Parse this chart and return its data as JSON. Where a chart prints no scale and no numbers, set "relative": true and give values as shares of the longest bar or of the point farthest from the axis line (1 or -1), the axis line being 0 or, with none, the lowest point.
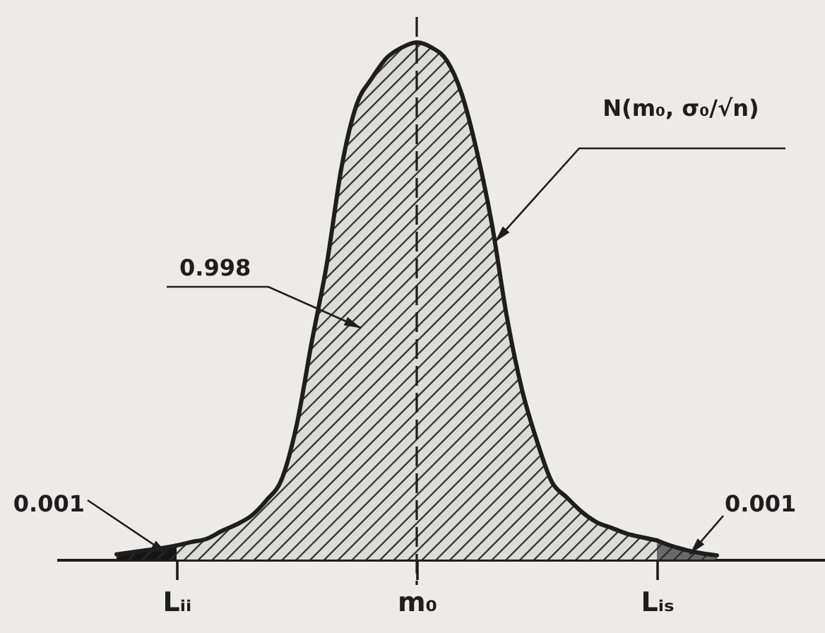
{
  "chart_data": {
    "type": "area",
    "relative": true,
    "categories": [
      null,
      null,
      null,
      null,
      "Lᵢᵢ",
      null,
      null,
      null,
      null,
      null,
      null,
      null,
      null,
      null,
      null,
      null,
      null,
      null,
      null,
      null,
      "m₀",
      null,
      null,
      null,
      null,
      null,
      null,
      null,
      null,
      null,
      null,
      null,
      null,
      null,
      null,
      null,
      "Lᵢₛ",
      null,
      null,
      null,
      null
    ],
    "series": [
      {
        "color": "#151515",
        "values": [
          0.01,
          0.014,
          0.018,
          0.022,
          0.027,
          null,
          null,
          null,
          null,
          null,
          null,
          null,
          null,
          null,
          null,
          null,
          null,
          null,
          null,
          null,
          null,
          null,
          null,
          null,
          null,
          null,
          null,
          null,
          null,
          null,
          null,
          null,
          null,
          null,
          null,
          null,
          null,
          null,
          null,
          null,
          null
        ]
      },
      {
        "color": "#dcdcd8",
        "values": [
          null,
          null,
          null,
          null,
          0.027,
          0.034,
          0.04,
          0.055,
          0.068,
          0.085,
          0.115,
          0.155,
          0.26,
          0.42,
          0.57,
          0.76,
          0.88,
          0.93,
          0.97,
          0.99,
          1.0,
          0.99,
          0.965,
          0.9,
          0.79,
          0.65,
          0.47,
          0.33,
          0.23,
          0.15,
          0.12,
          0.092,
          0.072,
          0.061,
          0.05,
          0.043,
          0.037,
          null,
          null,
          null,
          null
        ]
      },
      {
        "color": "#6a6a6a",
        "values": [
          null,
          null,
          null,
          null,
          null,
          null,
          null,
          null,
          null,
          null,
          null,
          null,
          null,
          null,
          null,
          null,
          null,
          null,
          null,
          null,
          null,
          null,
          null,
          null,
          null,
          null,
          null,
          null,
          null,
          null,
          null,
          null,
          null,
          null,
          null,
          null,
          0.037,
          0.026,
          0.018,
          0.012,
          0.008
        ]
      }
    ],
    "ref_lines": [
      {
        "axis": "x",
        "value": "m₀",
        "line_style": "dashed"
      }
    ],
    "annotations": [
      "N(m₀, σ₀/√n)",
      "0.998",
      "0.001",
      "0.001"
    ]
  }
}
